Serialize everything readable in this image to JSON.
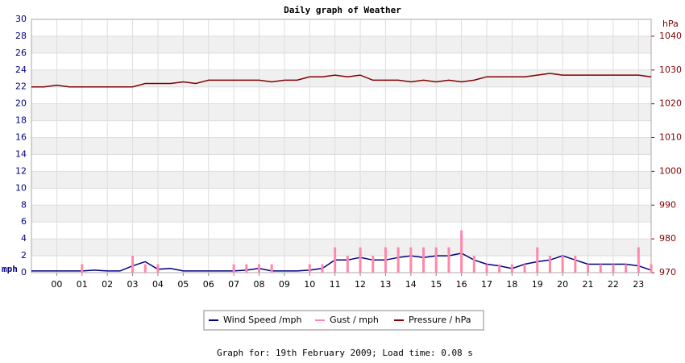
{
  "chart_data": {
    "type": "line",
    "title": "Daily graph of Weather",
    "ylabel": "mph",
    "y2label": "hPa",
    "footer": "Graph for: 19th February 2009; Load time: 0.08 s",
    "x": [
      -1,
      -0.5,
      0,
      0.5,
      1,
      1.5,
      2,
      2.5,
      3,
      3.5,
      4,
      4.5,
      5,
      5.5,
      6,
      6.5,
      7,
      7.5,
      8,
      8.5,
      9,
      9.5,
      10,
      10.5,
      11,
      11.5,
      12,
      12.5,
      13,
      13.5,
      14,
      14.5,
      15,
      15.5,
      16,
      16.5,
      17,
      17.5,
      18,
      18.5,
      19,
      19.5,
      20,
      20.5,
      21,
      21.5,
      22,
      22.5,
      23,
      23.5
    ],
    "series": [
      {
        "name": "Wind Speed /mph",
        "color": "#000080",
        "style": "line",
        "values": [
          0.2,
          0.2,
          0.2,
          0.2,
          0.2,
          0.3,
          0.2,
          0.2,
          0.8,
          1.3,
          0.4,
          0.5,
          0.2,
          0.2,
          0.2,
          0.2,
          0.2,
          0.3,
          0.5,
          0.2,
          0.2,
          0.2,
          0.3,
          0.5,
          1.5,
          1.5,
          1.8,
          1.5,
          1.5,
          1.8,
          2,
          1.8,
          2,
          2,
          2.3,
          1.5,
          1,
          0.8,
          0.5,
          1,
          1.3,
          1.5,
          2,
          1.5,
          1,
          1,
          1,
          1,
          0.8,
          0.3
        ]
      },
      {
        "name": "Gust / mph",
        "color": "#ff88aa",
        "style": "bar",
        "values": [
          0,
          0,
          0,
          0,
          1,
          0,
          0,
          0,
          2,
          1,
          1,
          0,
          0,
          0,
          0,
          0,
          1,
          1,
          1,
          1,
          0,
          0,
          1,
          1,
          3,
          2,
          3,
          2,
          3,
          3,
          3,
          3,
          3,
          3,
          5,
          2,
          1,
          1,
          1,
          1,
          3,
          2,
          2,
          2,
          1,
          1,
          1,
          1,
          3,
          1
        ]
      },
      {
        "name": "Pressure / hPa",
        "color": "#800000",
        "style": "line",
        "axis": "y2",
        "values": [
          1025,
          1025,
          1025.5,
          1025,
          1025,
          1025,
          1025,
          1025,
          1025,
          1026,
          1026,
          1026,
          1026.5,
          1026,
          1027,
          1027,
          1027,
          1027,
          1027,
          1026.5,
          1027,
          1027,
          1028,
          1028,
          1028.5,
          1028,
          1028.5,
          1027,
          1027,
          1027,
          1026.5,
          1027,
          1026.5,
          1027,
          1026.5,
          1027,
          1028,
          1028,
          1028,
          1028,
          1028.5,
          1029,
          1028.5,
          1028.5,
          1028.5,
          1028.5,
          1028.5,
          1028.5,
          1028.5,
          1028
        ]
      }
    ],
    "xlim": [
      -1,
      23.5
    ],
    "xticks": [
      {
        "value": 0,
        "label": "00"
      },
      {
        "value": 1,
        "label": "01"
      },
      {
        "value": 2,
        "label": "02"
      },
      {
        "value": 3,
        "label": "03"
      },
      {
        "value": 4,
        "label": "04"
      },
      {
        "value": 5,
        "label": "05"
      },
      {
        "value": 6,
        "label": "06"
      },
      {
        "value": 7,
        "label": "07"
      },
      {
        "value": 8,
        "label": "08"
      },
      {
        "value": 9,
        "label": "09"
      },
      10,
      11,
      12,
      13,
      14,
      15,
      16,
      17,
      18,
      19,
      20,
      21,
      22,
      23
    ],
    "ylim": [
      0,
      30
    ],
    "yticks": [
      0,
      2,
      4,
      6,
      8,
      10,
      12,
      14,
      16,
      18,
      20,
      22,
      24,
      26,
      28,
      30
    ],
    "y2lim": [
      970,
      1045
    ],
    "y2ticks": [
      970,
      980,
      990,
      1000,
      1010,
      1020,
      1030,
      1040
    ],
    "grid": true,
    "legend": "bottom"
  }
}
